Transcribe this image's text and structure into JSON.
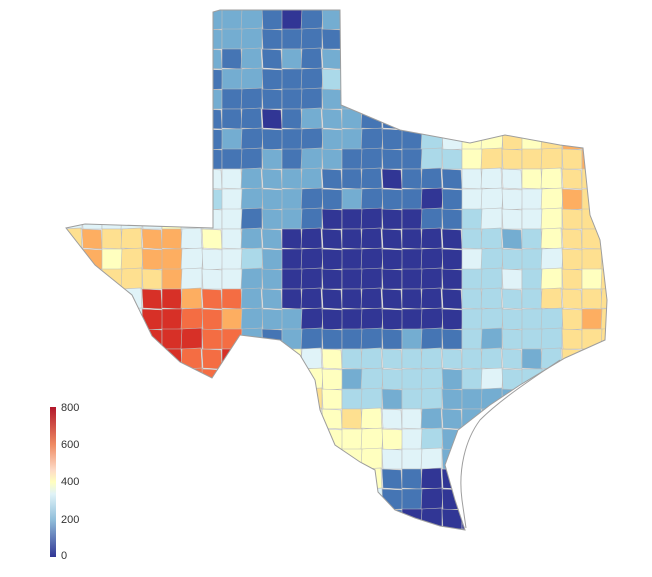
{
  "map": {
    "legend": {
      "ticks": [
        "800",
        "600",
        "400",
        "200",
        "0"
      ],
      "min": 0,
      "max": 800,
      "colors": [
        "#313695",
        "#4575b4",
        "#74add1",
        "#abd9e9",
        "#e0f3f8",
        "#ffffbf",
        "#fee090",
        "#fdae61",
        "#f46d43",
        "#d73027"
      ]
    }
  }
}
